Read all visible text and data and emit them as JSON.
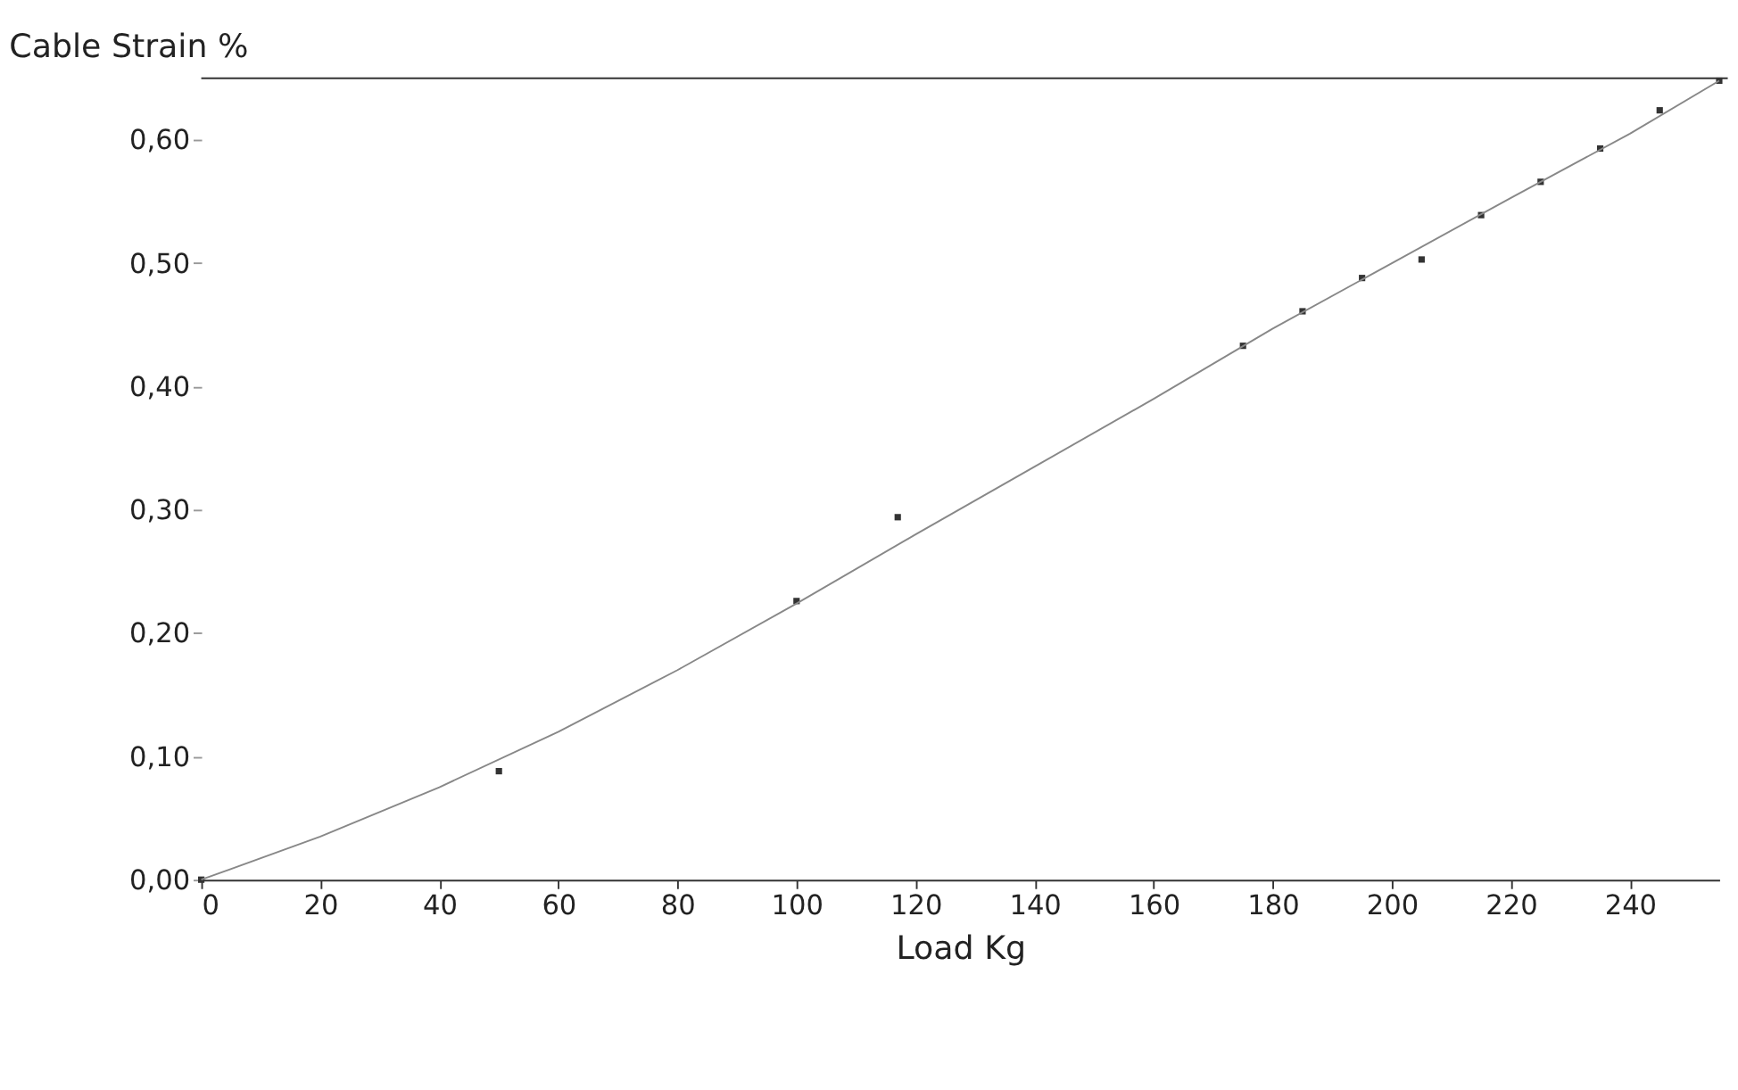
{
  "chart_data": {
    "type": "scatter",
    "ylabel": "Cable Strain %",
    "xlabel": "Load Kg",
    "xlim": [
      0,
      255
    ],
    "xticks": [
      0,
      20,
      40,
      60,
      80,
      100,
      120,
      140,
      160,
      180,
      200,
      220,
      240
    ],
    "ylim": [
      0,
      0.65
    ],
    "yticks": [
      {
        "value": 0,
        "label": "0,00"
      },
      {
        "value": 0.1,
        "label": "0,10"
      },
      {
        "value": 0.2,
        "label": "0,20"
      },
      {
        "value": 0.3,
        "label": "0,30"
      },
      {
        "value": 0.4,
        "label": "0,40"
      },
      {
        "value": 0.5,
        "label": "0,50"
      },
      {
        "value": 0.6,
        "label": "0,60"
      }
    ],
    "grid": false,
    "series": [
      {
        "color": "#333333",
        "marker": "square",
        "x": [
          0,
          50,
          100,
          117,
          175,
          185,
          195,
          205,
          215,
          225,
          235,
          245,
          255
        ],
        "values": [
          0,
          0.088,
          0.226,
          0.294,
          0.433,
          0.461,
          0.488,
          0.503,
          0.539,
          0.566,
          0.593,
          0.624,
          0.648
        ]
      },
      {
        "type": "line",
        "color": "#888888",
        "line_style": "solid",
        "x": [
          0,
          20,
          40,
          60,
          80,
          100,
          120,
          140,
          160,
          180,
          200,
          220,
          240,
          255
        ],
        "values": [
          0,
          0.035,
          0.075,
          0.12,
          0.17,
          0.224,
          0.28,
          0.335,
          0.39,
          0.447,
          0.5,
          0.553,
          0.605,
          0.648
        ]
      }
    ]
  }
}
